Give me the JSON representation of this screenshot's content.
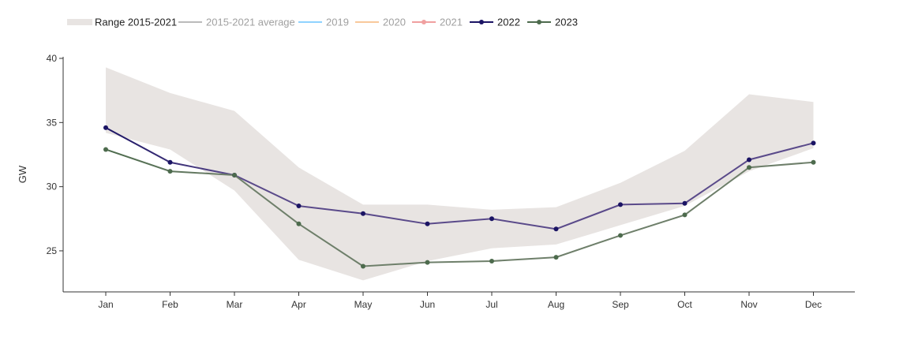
{
  "chart_data": {
    "type": "line",
    "categories": [
      "Jan",
      "Feb",
      "Mar",
      "Apr",
      "May",
      "Jun",
      "Jul",
      "Aug",
      "Sep",
      "Oct",
      "Nov",
      "Dec"
    ],
    "ylabel": "GW",
    "ylim": [
      21.8,
      40
    ],
    "yticks": [
      25,
      30,
      35,
      40
    ],
    "grid": false,
    "legend_position": "top-left",
    "legend": [
      {
        "label": "Range 2015-2021",
        "kind": "band",
        "color": "#e8e4e2",
        "active": true
      },
      {
        "label": "2015-2021 average",
        "kind": "line",
        "color": "#bbbbbb",
        "active": false
      },
      {
        "label": "2019",
        "kind": "line",
        "color": "#8fd3ff",
        "active": false
      },
      {
        "label": "2020",
        "kind": "line",
        "color": "#f8c99b",
        "active": false
      },
      {
        "label": "2021",
        "kind": "marker-line",
        "color": "#f0a0a0",
        "active": false
      },
      {
        "label": "2022",
        "kind": "marker-line",
        "color": "#1b1464",
        "active": true
      },
      {
        "label": "2023",
        "kind": "marker-line",
        "color": "#4d6b4d",
        "active": true
      }
    ],
    "range": {
      "name": "Range 2015-2021",
      "upper": [
        39.3,
        37.3,
        35.9,
        31.5,
        28.6,
        28.6,
        28.2,
        28.4,
        30.3,
        32.8,
        37.2,
        36.6
      ],
      "lower": [
        34.2,
        32.9,
        29.7,
        24.3,
        22.7,
        24.2,
        25.2,
        25.5,
        27.0,
        28.5,
        31.2,
        33.0
      ],
      "color": "#e8e4e2"
    },
    "series": [
      {
        "name": "2022",
        "values": [
          34.6,
          31.9,
          30.9,
          28.5,
          27.9,
          27.1,
          27.5,
          26.7,
          28.6,
          28.7,
          32.1,
          33.4
        ],
        "color": "#1b1464",
        "end_color": "#5a4a8a"
      },
      {
        "name": "2023",
        "values": [
          32.9,
          31.2,
          30.9,
          27.1,
          23.8,
          24.1,
          24.2,
          24.5,
          26.2,
          27.8,
          31.5,
          31.9
        ],
        "color": "#4d6b4d",
        "end_color": "#6e7f6a"
      }
    ]
  }
}
